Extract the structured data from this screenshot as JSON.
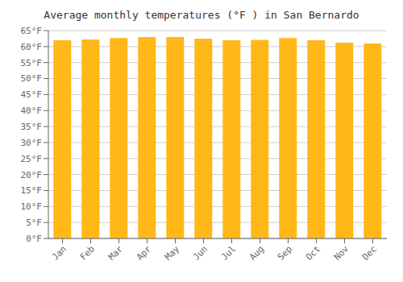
{
  "chart_data": {
    "type": "bar",
    "title": "Average monthly temperatures (°F ) in San Bernardo",
    "categories": [
      "Jan",
      "Feb",
      "Mar",
      "Apr",
      "May",
      "Jun",
      "Jul",
      "Aug",
      "Sep",
      "Oct",
      "Nov",
      "Dec"
    ],
    "values": [
      62.0,
      62.2,
      62.7,
      63.0,
      63.0,
      62.5,
      62.0,
      62.1,
      62.7,
      62.0,
      61.2,
      61.0
    ],
    "color": "#FFB818",
    "ylim": [
      0,
      65
    ],
    "yticks": [
      {
        "value": 0,
        "label": "0°F"
      },
      {
        "value": 5,
        "label": "5°F"
      },
      {
        "value": 10,
        "label": "10°F"
      },
      {
        "value": 15,
        "label": "15°F"
      },
      {
        "value": 20,
        "label": "20°F"
      },
      {
        "value": 25,
        "label": "25°F"
      },
      {
        "value": 30,
        "label": "30°F"
      },
      {
        "value": 35,
        "label": "35°F"
      },
      {
        "value": 40,
        "label": "40°F"
      },
      {
        "value": 45,
        "label": "45°F"
      },
      {
        "value": 50,
        "label": "50°F"
      },
      {
        "value": 55,
        "label": "55°F"
      },
      {
        "value": 60,
        "label": "60°F"
      },
      {
        "value": 65,
        "label": "65°F"
      }
    ],
    "grid": true
  }
}
